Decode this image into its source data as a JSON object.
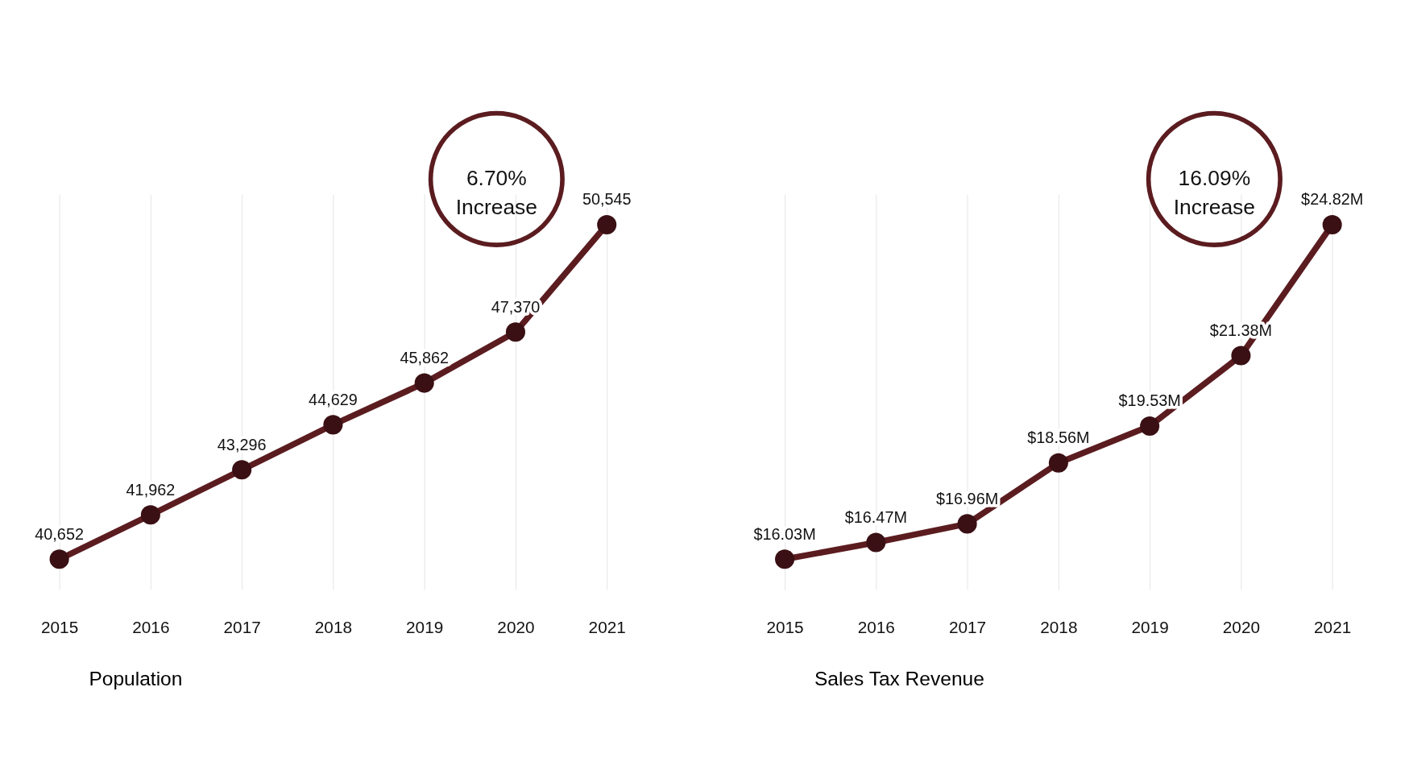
{
  "chart_data": [
    {
      "type": "line",
      "categories": [
        "2015",
        "2016",
        "2017",
        "2018",
        "2019",
        "2020",
        "2021"
      ],
      "series": [
        {
          "name": "Population",
          "color": "#5b1c20",
          "values": [
            40652,
            41962,
            43296,
            44629,
            45862,
            47370,
            50545
          ],
          "value_labels": [
            "40,652",
            "41,962",
            "43,296",
            "44,629",
            "45,862",
            "47,370",
            "50,545"
          ]
        }
      ],
      "annotations": [
        "6.70% Increase"
      ],
      "grid": "x",
      "legend": "bottom",
      "marker": "circle",
      "tick_labels": "x"
    },
    {
      "type": "line",
      "categories": [
        "2015",
        "2016",
        "2017",
        "2018",
        "2019",
        "2020",
        "2021"
      ],
      "series": [
        {
          "name": "Sales Tax Revenue",
          "color": "#5b1c20",
          "values": [
            16.03,
            16.47,
            16.96,
            18.56,
            19.53,
            21.38,
            24.82
          ],
          "value_labels": [
            "$16.03M",
            "$16.47M",
            "$16.96M",
            "$18.56M",
            "$19.53M",
            "$21.38M",
            "$24.82M"
          ]
        }
      ],
      "annotations": [
        "16.09% Increase"
      ],
      "grid": "x",
      "legend": "bottom",
      "marker": "circle",
      "tick_labels": "x"
    }
  ]
}
